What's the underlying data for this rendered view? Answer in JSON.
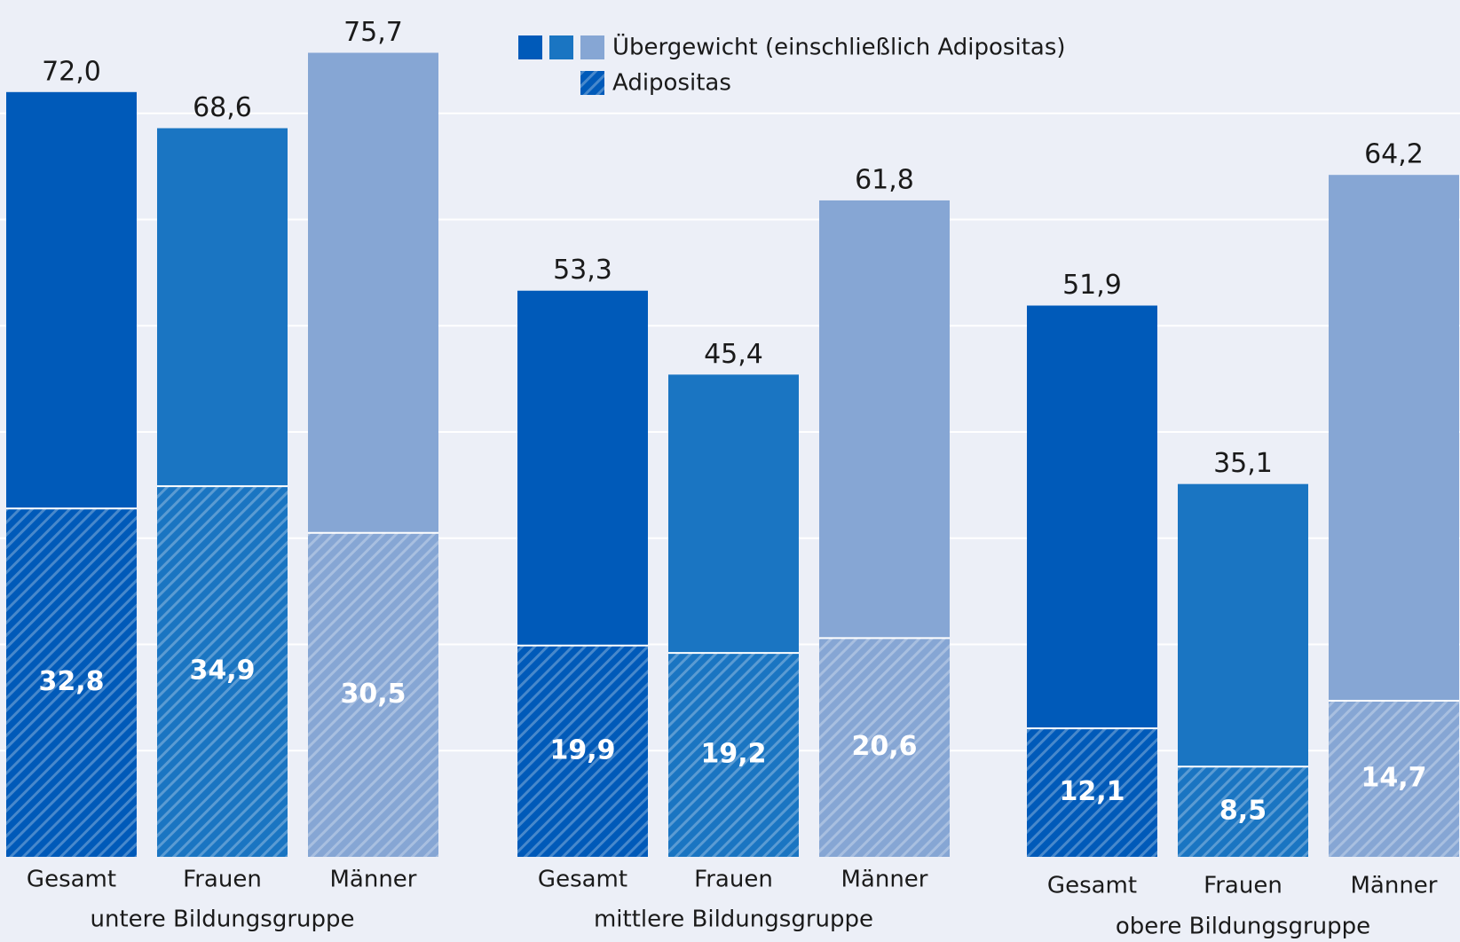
{
  "chart_data": {
    "type": "bar",
    "groups": [
      "untere Bildungsgruppe",
      "mittlere Bildungsgruppe",
      "obere Bildungsgruppe"
    ],
    "categories": [
      "Gesamt",
      "Frauen",
      "Männer",
      "Gesamt",
      "Frauen",
      "Männer",
      "Gesamt",
      "Frauen",
      "Männer"
    ],
    "colors": [
      "#005ab9",
      "#1a75c2",
      "#86a6d4",
      "#005ab9",
      "#1a75c2",
      "#86a6d4",
      "#005ab9",
      "#1a75c2",
      "#86a6d4"
    ],
    "series": [
      {
        "name": "Übergewicht (einschließlich Adipositas)",
        "values": [
          72.0,
          68.6,
          75.7,
          53.3,
          45.4,
          61.8,
          51.9,
          35.1,
          64.2
        ],
        "value_labels": [
          "72,0",
          "68,6",
          "75,7",
          "53,3",
          "45,4",
          "61,8",
          "51,9",
          "35,1",
          "64,2"
        ]
      },
      {
        "name": "Adipositas",
        "hatched": true,
        "values": [
          32.8,
          34.9,
          30.5,
          19.9,
          19.2,
          20.6,
          12.1,
          8.5,
          14.7
        ],
        "value_labels": [
          "32,8",
          "34,9",
          "30,5",
          "19,9",
          "19,2",
          "20,6",
          "12,1",
          "8,5",
          "14,7"
        ]
      }
    ],
    "ylim": [
      0,
      80
    ],
    "yticks": [
      10,
      20,
      30,
      40,
      50,
      60,
      70
    ],
    "grid": true
  }
}
